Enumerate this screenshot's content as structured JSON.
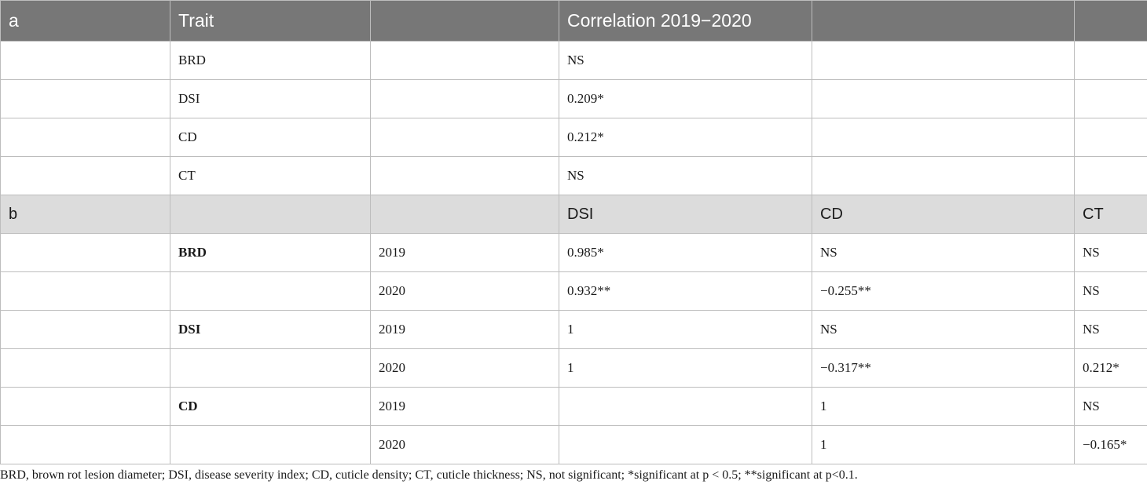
{
  "section_a": {
    "label": "a",
    "trait_header": "Trait",
    "corr_header": "Correlation 2019−2020",
    "rows": [
      {
        "trait": "BRD",
        "value": "NS"
      },
      {
        "trait": "DSI",
        "value": "0.209*"
      },
      {
        "trait": "CD",
        "value": "0.212*"
      },
      {
        "trait": "CT",
        "value": "NS"
      }
    ]
  },
  "section_b": {
    "label": "b",
    "col_dsi": "DSI",
    "col_cd": "CD",
    "col_ct": "CT",
    "rows": [
      {
        "trait": "BRD",
        "year": "2019",
        "dsi": "0.985*",
        "cd": "NS",
        "ct": "NS"
      },
      {
        "trait": "",
        "year": "2020",
        "dsi": "0.932**",
        "cd": "−0.255**",
        "ct": "NS"
      },
      {
        "trait": "DSI",
        "year": "2019",
        "dsi": "1",
        "cd": "NS",
        "ct": "NS"
      },
      {
        "trait": "",
        "year": "2020",
        "dsi": "1",
        "cd": "−0.317**",
        "ct": "0.212*"
      },
      {
        "trait": "CD",
        "year": "2019",
        "dsi": "",
        "cd": "1",
        "ct": "NS"
      },
      {
        "trait": "",
        "year": "2020",
        "dsi": "",
        "cd": "1",
        "ct": "−0.165*"
      }
    ]
  },
  "footnote": "BRD, brown rot lesion diameter; DSI, disease severity index; CD, cuticle density; CT, cuticle thickness; NS, not significant; *significant at p < 0.5; **significant at p<0.1."
}
